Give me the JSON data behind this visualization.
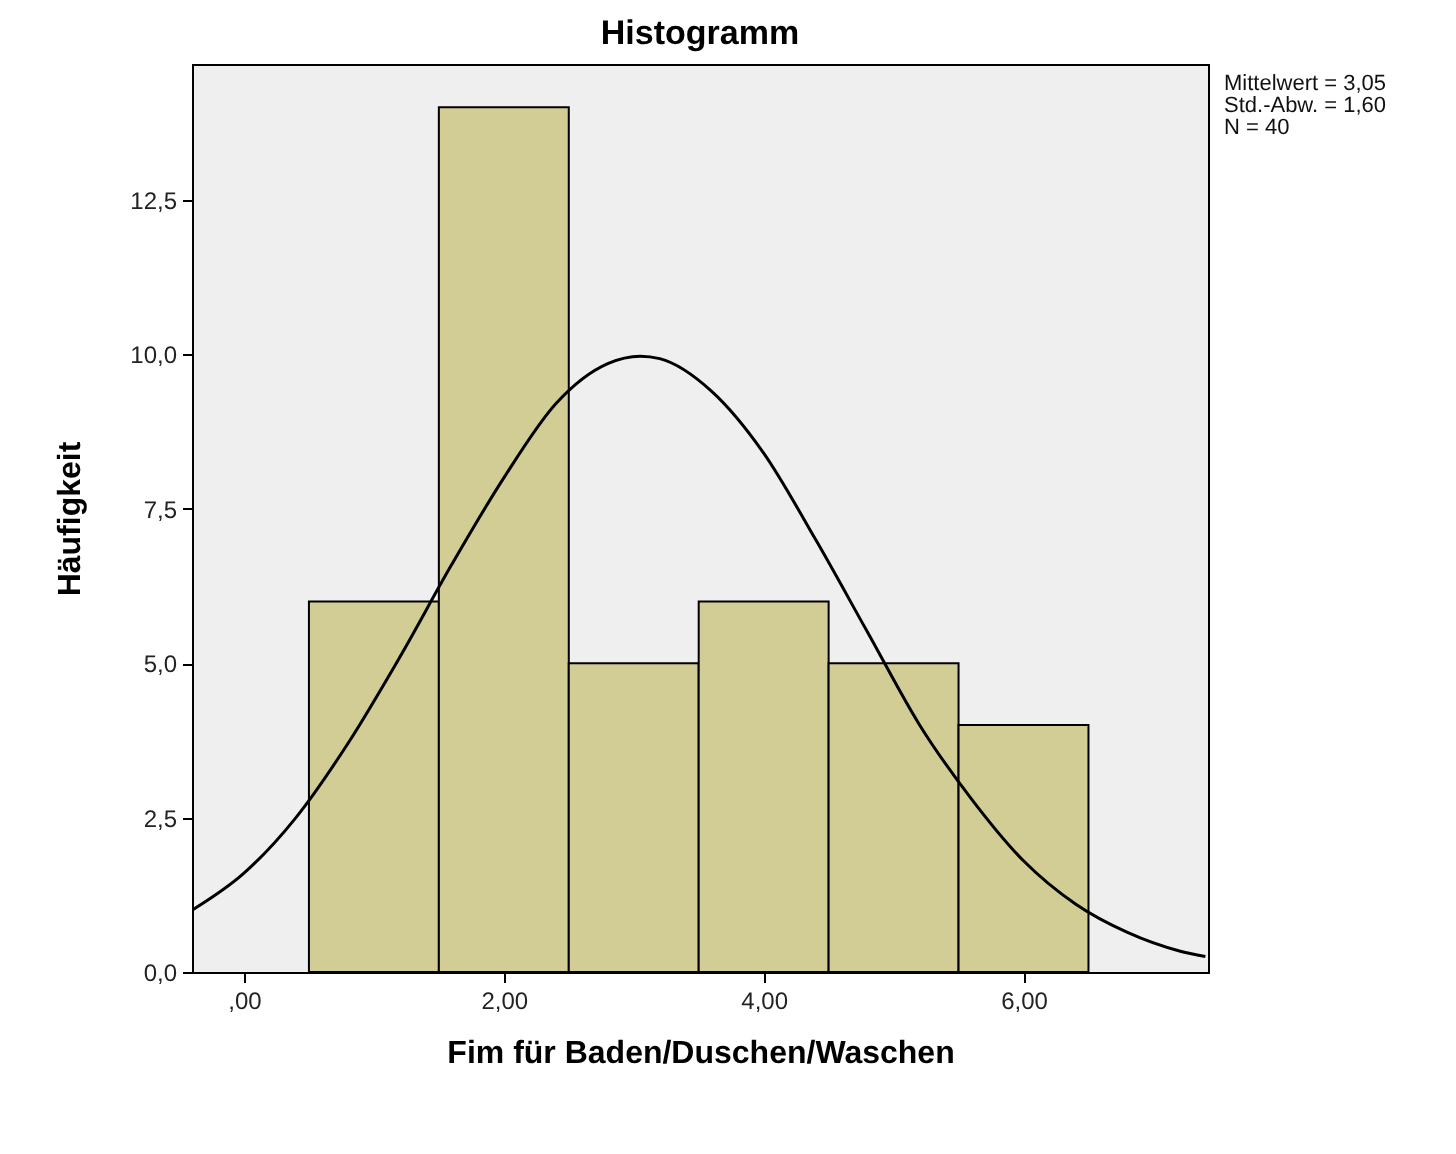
{
  "chart_data": {
    "type": "histogram",
    "title": "Histogramm",
    "xlabel": "Fim für Baden/Duschen/Waschen",
    "ylabel": "Häufigkeit",
    "bins": [
      0.5,
      1.5,
      2.5,
      3.5,
      4.5,
      5.5,
      6.5
    ],
    "values": [
      6,
      14,
      5,
      6,
      5,
      4
    ],
    "color": "#d2cd94",
    "series": [
      {
        "type": "line",
        "color": "#000000",
        "x": [
          -0.4,
          0.0,
          0.4,
          0.8,
          1.2,
          1.6,
          2.0,
          2.4,
          2.8,
          3.05,
          3.2,
          3.6,
          4.0,
          4.4,
          4.8,
          5.2,
          5.6,
          6.0,
          6.4,
          6.8,
          7.2,
          7.4
        ],
        "values": [
          1.0,
          1.6,
          2.5,
          3.7,
          5.1,
          6.6,
          8.0,
          9.2,
          9.85,
          9.97,
          9.93,
          9.4,
          8.4,
          7.0,
          5.5,
          4.0,
          2.8,
          1.8,
          1.1,
          0.64,
          0.34,
          0.25
        ]
      }
    ],
    "xlim": [
      -0.4,
      7.42
    ],
    "xticks": [
      {
        "value": 0,
        "label": ",00"
      },
      {
        "value": 2,
        "label": "2,00"
      },
      {
        "value": 4,
        "label": "4,00"
      },
      {
        "value": 6,
        "label": "6,00"
      }
    ],
    "ylim": [
      0,
      14.7
    ],
    "yticks": [
      {
        "value": 0,
        "label": "0,0"
      },
      {
        "value": 2.5,
        "label": "2,5"
      },
      {
        "value": 5,
        "label": "5,0"
      },
      {
        "value": 7.5,
        "label": "7,5"
      },
      {
        "value": 10,
        "label": "10,0"
      },
      {
        "value": 12.5,
        "label": "12,5"
      }
    ],
    "annotations": [
      "Mittelwert = 3,05",
      "Std.-Abw. = 1,60",
      "N = 40"
    ],
    "grid": false
  }
}
